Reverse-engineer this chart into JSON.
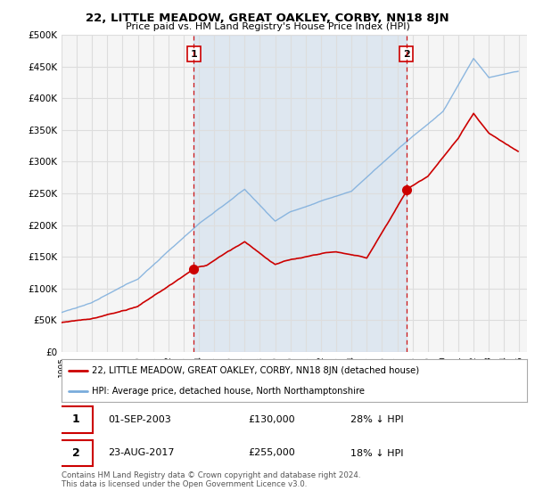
{
  "title": "22, LITTLE MEADOW, GREAT OAKLEY, CORBY, NN18 8JN",
  "subtitle": "Price paid vs. HM Land Registry's House Price Index (HPI)",
  "ylabel_ticks": [
    "£0",
    "£50K",
    "£100K",
    "£150K",
    "£200K",
    "£250K",
    "£300K",
    "£350K",
    "£400K",
    "£450K",
    "£500K"
  ],
  "ytick_values": [
    0,
    50000,
    100000,
    150000,
    200000,
    250000,
    300000,
    350000,
    400000,
    450000,
    500000
  ],
  "x_start_year": 1995,
  "x_end_year": 2025,
  "sale1_date": "01-SEP-2003",
  "sale1_price": 130000,
  "sale1_label": "28% ↓ HPI",
  "sale2_date": "23-AUG-2017",
  "sale2_price": 255000,
  "sale2_label": "18% ↓ HPI",
  "legend_property": "22, LITTLE MEADOW, GREAT OAKLEY, CORBY, NN18 8JN (detached house)",
  "legend_hpi": "HPI: Average price, detached house, North Northamptonshire",
  "footer": "Contains HM Land Registry data © Crown copyright and database right 2024.\nThis data is licensed under the Open Government Licence v3.0.",
  "property_color": "#cc0000",
  "hpi_color": "#7aacdc",
  "hpi_fill_color": "#ddeeff",
  "vline_color": "#cc0000",
  "background_color": "#ffffff",
  "plot_bg_color": "#f5f5f5",
  "grid_color": "#dddddd"
}
